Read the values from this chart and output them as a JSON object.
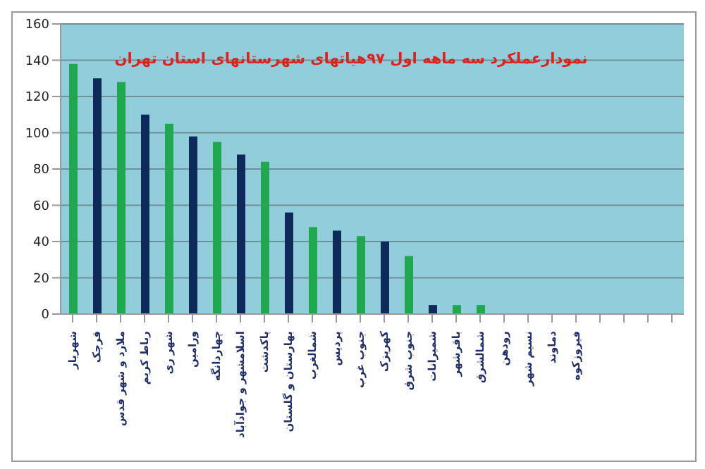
{
  "chart_data": {
    "type": "bar",
    "title": "نمودارعملکرد سه ماهه اول ۹۷هیاتهای شهرستانهای استان تهران",
    "categories": [
      "شهریار",
      "قرچک",
      "ملارد و شهر قدس",
      "رباط کریم",
      "شهر ری",
      "ورامین",
      "چهاردانگه",
      "اسلامشهر و جوادآباد",
      "پاکدشت",
      "بهارستان و گلستان",
      "شمالغرب",
      "پردیس",
      "جنوب غرب",
      "کهریزک",
      "جنوب شرق",
      "شمیرانات",
      "باقرشهر",
      "شمالشرق",
      "رودهن",
      "نسیم شهر",
      "دماوند",
      "فیروزکوه",
      null,
      null,
      null,
      null
    ],
    "values": [
      138,
      130,
      128,
      110,
      105,
      98,
      95,
      88,
      84,
      56,
      48,
      46,
      43,
      40,
      32,
      5,
      5,
      5,
      0,
      0,
      0,
      0,
      null,
      null,
      null,
      null
    ],
    "colors": [
      "#1fa84f",
      "#0d2a5a",
      "#1fa84f",
      "#0d2a5a",
      "#1fa84f",
      "#0d2a5a",
      "#1fa84f",
      "#0d2a5a",
      "#1fa84f",
      "#0d2a5a",
      "#1fa84f",
      "#0d2a5a",
      "#1fa84f",
      "#0d2a5a",
      "#1fa84f",
      "#0d2a5a",
      "#1fa84f",
      "#1fa84f",
      "#1fa84f",
      "#1fa84f",
      "#1fa84f",
      "#1fa84f",
      "#1fa84f",
      "#1fa84f",
      "#1fa84f",
      "#1fa84f"
    ],
    "ylim": [
      0,
      160
    ],
    "yticks": [
      0,
      20,
      40,
      60,
      80,
      100,
      120,
      140,
      160
    ],
    "grid": "y",
    "legend": false
  }
}
